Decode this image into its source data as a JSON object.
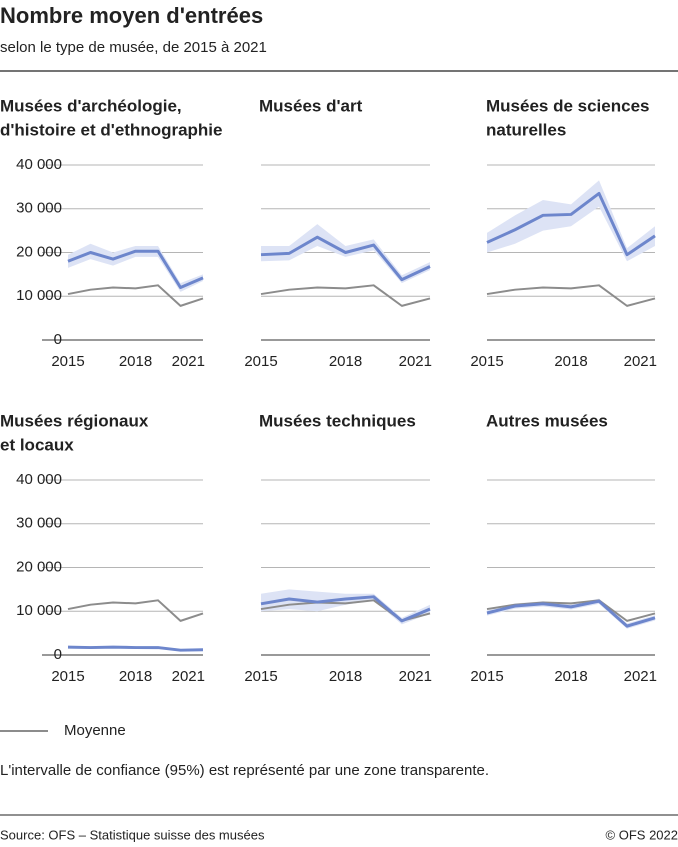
{
  "header": {
    "title": "Nombre moyen d'entrées",
    "subtitle": "selon le type de musée, de 2015 à 2021"
  },
  "legend": {
    "label": "Moyenne",
    "color": "#8c8c8c"
  },
  "note": "L'intervalle de confiance (95%) est représenté par une zone transparente.",
  "footer": {
    "source": "Source: OFS – Statistique suisse des musées",
    "copyright": "© OFS 2022"
  },
  "chart_data": [
    {
      "type": "line",
      "title": [
        "Musées d'archéologie,",
        "d'histoire et d'ethnographie"
      ],
      "x": [
        2015,
        2016,
        2017,
        2018,
        2019,
        2020,
        2021
      ],
      "xlim": [
        2015,
        2021
      ],
      "xticks": [
        2015,
        2018,
        2021
      ],
      "ylim": [
        0,
        40000
      ],
      "yticks": [
        0,
        {
          "value": 10000,
          "label": "10 000"
        },
        {
          "value": 20000,
          "label": "20 000"
        },
        {
          "value": 30000,
          "label": "30 000"
        },
        {
          "value": 40000,
          "label": "40 000"
        }
      ],
      "grid": true,
      "series": [
        {
          "color": "#6d86cc",
          "band_color": "#dde3f5",
          "values": [
            18000,
            20000,
            18500,
            20300,
            20300,
            12000,
            14200
          ],
          "lower": [
            16500,
            18500,
            17000,
            19000,
            19000,
            11000,
            13500
          ],
          "upper": [
            19500,
            22000,
            20000,
            21500,
            21500,
            13000,
            15000
          ]
        },
        {
          "color": "#8c8c8c",
          "values": [
            10500,
            11500,
            12000,
            11800,
            12500,
            7800,
            9500
          ]
        }
      ]
    },
    {
      "type": "line",
      "title": [
        "Musées d'art"
      ],
      "x": [
        2015,
        2016,
        2017,
        2018,
        2019,
        2020,
        2021
      ],
      "xlim": [
        2015,
        2021
      ],
      "xticks": [
        2015,
        2018,
        2021
      ],
      "ylim": [
        0,
        40000
      ],
      "yticks": [
        0,
        10000,
        20000,
        30000,
        40000
      ],
      "grid": true,
      "series": [
        {
          "color": "#6d86cc",
          "band_color": "#dde3f5",
          "values": [
            19500,
            19800,
            23500,
            20000,
            21700,
            13800,
            16800
          ],
          "lower": [
            18000,
            18200,
            21500,
            19000,
            20500,
            13000,
            16000
          ],
          "upper": [
            21500,
            21500,
            26500,
            21500,
            23000,
            14800,
            17800
          ]
        },
        {
          "color": "#8c8c8c",
          "values": [
            10500,
            11500,
            12000,
            11800,
            12500,
            7800,
            9500
          ]
        }
      ]
    },
    {
      "type": "line",
      "title": [
        "Musées de sciences",
        "naturelles"
      ],
      "x": [
        2015,
        2016,
        2017,
        2018,
        2019,
        2020,
        2021
      ],
      "xlim": [
        2015,
        2021
      ],
      "xticks": [
        2015,
        2018,
        2021
      ],
      "ylim": [
        0,
        40000
      ],
      "yticks": [
        0,
        10000,
        20000,
        30000,
        40000
      ],
      "grid": true,
      "series": [
        {
          "color": "#6d86cc",
          "band_color": "#dde3f5",
          "values": [
            22300,
            25200,
            28500,
            28700,
            33500,
            19500,
            23800
          ],
          "lower": [
            20000,
            22000,
            25000,
            26000,
            30500,
            18000,
            21500
          ],
          "upper": [
            24500,
            28500,
            32000,
            31000,
            36500,
            21000,
            26000
          ]
        },
        {
          "color": "#8c8c8c",
          "values": [
            10500,
            11500,
            12000,
            11800,
            12500,
            7800,
            9500
          ]
        }
      ]
    },
    {
      "type": "line",
      "title": [
        "Musées régionaux",
        "et locaux"
      ],
      "x": [
        2015,
        2016,
        2017,
        2018,
        2019,
        2020,
        2021
      ],
      "xlim": [
        2015,
        2021
      ],
      "xticks": [
        2015,
        2018,
        2021
      ],
      "ylim": [
        0,
        40000
      ],
      "yticks": [
        0,
        {
          "value": 10000,
          "label": "10 000"
        },
        {
          "value": 20000,
          "label": "20 000"
        },
        {
          "value": 30000,
          "label": "30 000"
        },
        {
          "value": 40000,
          "label": "40 000"
        }
      ],
      "grid": true,
      "series": [
        {
          "color": "#6d86cc",
          "band_color": "#dde3f5",
          "values": [
            1800,
            1700,
            1800,
            1700,
            1700,
            1100,
            1200
          ],
          "lower": [
            1500,
            1400,
            1500,
            1400,
            1400,
            900,
            1000
          ],
          "upper": [
            2100,
            2000,
            2100,
            2000,
            2000,
            1300,
            1400
          ]
        },
        {
          "color": "#8c8c8c",
          "values": [
            10500,
            11500,
            12000,
            11800,
            12500,
            7800,
            9500
          ]
        }
      ]
    },
    {
      "type": "line",
      "title": [
        "Musées techniques"
      ],
      "x": [
        2015,
        2016,
        2017,
        2018,
        2019,
        2020,
        2021
      ],
      "xlim": [
        2015,
        2021
      ],
      "xticks": [
        2015,
        2018,
        2021
      ],
      "ylim": [
        0,
        40000
      ],
      "yticks": [
        0,
        10000,
        20000,
        30000,
        40000
      ],
      "grid": true,
      "series": [
        {
          "color": "#6d86cc",
          "band_color": "#dde3f5",
          "values": [
            11700,
            12800,
            12100,
            12800,
            13300,
            7800,
            10500
          ],
          "lower": [
            10000,
            10500,
            10000,
            11500,
            12500,
            7000,
            9500
          ],
          "upper": [
            14000,
            15000,
            14500,
            14000,
            14000,
            8500,
            11500
          ]
        },
        {
          "color": "#8c8c8c",
          "values": [
            10500,
            11500,
            12000,
            11800,
            12500,
            7800,
            9500
          ]
        }
      ]
    },
    {
      "type": "line",
      "title": [
        "Autres musées"
      ],
      "x": [
        2015,
        2016,
        2017,
        2018,
        2019,
        2020,
        2021
      ],
      "xlim": [
        2015,
        2021
      ],
      "xticks": [
        2015,
        2018,
        2021
      ],
      "ylim": [
        0,
        40000
      ],
      "yticks": [
        0,
        10000,
        20000,
        30000,
        40000
      ],
      "grid": true,
      "series": [
        {
          "color": "#6d86cc",
          "band_color": "#dde3f5",
          "values": [
            9600,
            11200,
            11700,
            11000,
            12300,
            6600,
            8500
          ],
          "lower": [
            9000,
            10600,
            11100,
            10400,
            11700,
            6000,
            7900
          ],
          "upper": [
            10200,
            11800,
            12300,
            11600,
            12900,
            7200,
            9100
          ]
        },
        {
          "color": "#8c8c8c",
          "values": [
            10500,
            11500,
            12000,
            11800,
            12500,
            7800,
            9500
          ]
        }
      ]
    }
  ]
}
